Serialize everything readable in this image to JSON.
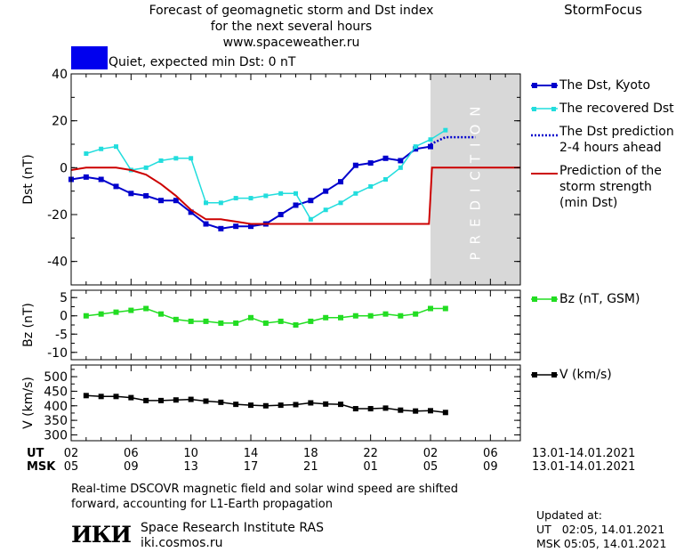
{
  "header": {
    "line1": "Forecast of geomagnetic storm and Dst index",
    "line2": "for the next several hours",
    "line3": "www.spaceweather.ru",
    "brand": "StormFocus"
  },
  "quiet": {
    "label": "Quiet, expected min Dst: 0 nT",
    "color": "#0000ee"
  },
  "prediction_label": "PREDICTION",
  "colors": {
    "dst": "#0000cc",
    "recovered": "#22dddd",
    "prediction": "#0000cc",
    "storm": "#cc0000",
    "bz": "#22dd22",
    "v": "#000000",
    "shade": "#d8d8d8"
  },
  "legend": {
    "dst": "The Dst, Kyoto",
    "recovered": "The recovered Dst",
    "prediction_1": "The Dst prediction",
    "prediction_2": "2-4 hours ahead",
    "storm_1": "Prediction of the",
    "storm_2": "storm strength",
    "storm_3": "(min Dst)",
    "bz": "Bz (nT, GSM)",
    "v": "V (km/s)"
  },
  "xaxis": {
    "ut_label": "UT",
    "msk_label": "MSK",
    "ut_ticks": [
      "02",
      "06",
      "10",
      "14",
      "18",
      "22",
      "02",
      "06"
    ],
    "msk_ticks": [
      "05",
      "09",
      "13",
      "17",
      "21",
      "01",
      "05",
      "09"
    ],
    "ut_date": "13.01-14.01.2021",
    "msk_date": "13.01-14.01.2021"
  },
  "footer": {
    "note1": "Real-time DSCOVR magnetic field and solar wind speed are shifted",
    "note2": "forward, accounting for L1-Earth propagation",
    "logo": "ИКИ",
    "institute": "Space Research Institute RAS",
    "site": "iki.cosmos.ru",
    "updated_label": "Updated at:",
    "updated_ut": "UT   02:05, 14.01.2021",
    "updated_msk": "MSK 05:05, 14.01.2021"
  },
  "chart_data": [
    {
      "type": "line",
      "ylabel": "Dst (nT)",
      "ylim": [
        -50,
        40
      ],
      "yticks": [
        -40,
        -20,
        0,
        20,
        40
      ],
      "xlim": [
        0,
        30
      ],
      "prediction_region": [
        24,
        30
      ],
      "series": [
        {
          "name": "The Dst, Kyoto",
          "x": [
            0,
            1,
            2,
            3,
            4,
            5,
            6,
            7,
            8,
            9,
            10,
            11,
            12,
            13,
            14,
            15,
            16,
            17,
            18,
            19,
            20,
            21,
            22,
            23,
            24
          ],
          "y": [
            -5,
            -4,
            -5,
            -8,
            -11,
            -12,
            -14,
            -14,
            -19,
            -24,
            -26,
            -25,
            -25,
            -24,
            -20,
            -16,
            -14,
            -10,
            -6,
            1,
            2,
            4,
            3,
            8,
            9
          ]
        },
        {
          "name": "The recovered Dst",
          "x": [
            1,
            2,
            3,
            4,
            5,
            6,
            7,
            8,
            9,
            10,
            11,
            12,
            13,
            14,
            15,
            16,
            17,
            18,
            19,
            20,
            21,
            22,
            23,
            24,
            25
          ],
          "y": [
            6,
            8,
            9,
            -1,
            0,
            3,
            4,
            4,
            -15,
            -15,
            -13,
            -13,
            -12,
            -11,
            -11,
            -22,
            -18,
            -15,
            -11,
            -8,
            -5,
            0,
            9,
            12,
            16
          ]
        },
        {
          "name": "The Dst prediction",
          "x": [
            24,
            25,
            27
          ],
          "y": [
            10,
            13,
            13
          ]
        },
        {
          "name": "Prediction of the storm strength",
          "x": [
            0,
            1,
            2,
            3,
            4,
            5,
            6,
            7,
            8,
            9,
            10,
            11,
            12,
            13,
            14,
            15,
            16,
            17,
            18,
            19,
            20,
            21,
            22,
            23,
            23.9,
            24.1,
            25,
            30
          ],
          "y": [
            -1,
            0,
            0,
            0,
            -1,
            -3,
            -7,
            -12,
            -18,
            -22,
            -22,
            -23,
            -24,
            -24,
            -24,
            -24,
            -24,
            -24,
            -24,
            -24,
            -24,
            -24,
            -24,
            -24,
            -24,
            0,
            0,
            0
          ]
        }
      ]
    },
    {
      "type": "line",
      "ylabel": "Bz (nT)",
      "ylim": [
        -12,
        7
      ],
      "yticks": [
        -10,
        -5,
        0,
        5
      ],
      "xlim": [
        0,
        30
      ],
      "series": [
        {
          "name": "Bz (nT, GSM)",
          "x": [
            1,
            2,
            3,
            4,
            5,
            6,
            7,
            8,
            9,
            10,
            11,
            12,
            13,
            14,
            15,
            16,
            17,
            18,
            19,
            20,
            21,
            22,
            23,
            24,
            25
          ],
          "y": [
            0,
            0.5,
            1,
            1.5,
            2,
            0.5,
            -1,
            -1.5,
            -1.5,
            -2,
            -2,
            -0.5,
            -2,
            -1.5,
            -2.5,
            -1.5,
            -0.5,
            -0.5,
            0,
            0,
            0.5,
            0,
            0.5,
            2,
            2
          ]
        }
      ]
    },
    {
      "type": "line",
      "ylabel": "V (km/s)",
      "ylim": [
        280,
        540
      ],
      "yticks": [
        300,
        350,
        400,
        450,
        500
      ],
      "xlim": [
        0,
        30
      ],
      "series": [
        {
          "name": "V (km/s)",
          "x": [
            1,
            2,
            3,
            4,
            5,
            6,
            7,
            8,
            9,
            10,
            11,
            12,
            13,
            14,
            15,
            16,
            17,
            18,
            19,
            20,
            21,
            22,
            23,
            24,
            25
          ],
          "y": [
            435,
            432,
            432,
            428,
            418,
            418,
            420,
            422,
            416,
            412,
            405,
            402,
            400,
            402,
            404,
            410,
            406,
            405,
            390,
            390,
            392,
            385,
            382,
            383,
            377
          ]
        }
      ]
    }
  ]
}
